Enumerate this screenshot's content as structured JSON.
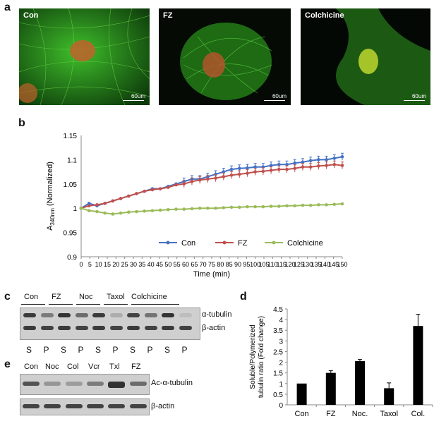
{
  "panels": {
    "a": "a",
    "b": "b",
    "c": "c",
    "d": "d",
    "e": "e"
  },
  "images": [
    {
      "label": "Con",
      "scale": "60um"
    },
    {
      "label": "FZ",
      "scale": "60um"
    },
    {
      "label": "Colchicine",
      "scale": "60um"
    }
  ],
  "chart_b": {
    "type": "line",
    "ylabel_main": "A",
    "ylabel_sub": "340nm",
    "ylabel_rest": " (Normalized)",
    "xlabel": "Time (min)",
    "xlim": [
      0,
      150
    ],
    "ylim": [
      0.9,
      1.15
    ],
    "yticks": [
      "0.9",
      "0.95",
      "1",
      "1.05",
      "1.1",
      "1.15"
    ],
    "xticks": [
      "0",
      "5",
      "10",
      "15",
      "20",
      "25",
      "30",
      "35",
      "40",
      "45",
      "50",
      "55",
      "60",
      "65",
      "70",
      "75",
      "80",
      "85",
      "90",
      "95",
      "100",
      "105",
      "110",
      "115",
      "120",
      "125",
      "130",
      "135",
      "140",
      "145",
      "150"
    ],
    "legend_position": "bottom-right",
    "series": [
      {
        "name": "Con",
        "color": "#4472c4",
        "values": [
          1.0,
          1.01,
          1.005,
          1.01,
          1.015,
          1.02,
          1.025,
          1.03,
          1.035,
          1.04,
          1.04,
          1.045,
          1.05,
          1.055,
          1.06,
          1.06,
          1.065,
          1.07,
          1.075,
          1.08,
          1.082,
          1.083,
          1.085,
          1.085,
          1.088,
          1.09,
          1.09,
          1.093,
          1.095,
          1.098,
          1.1,
          1.1,
          1.103,
          1.106
        ]
      },
      {
        "name": "FZ",
        "color": "#c0504d",
        "values": [
          1.0,
          1.005,
          1.007,
          1.01,
          1.015,
          1.02,
          1.025,
          1.03,
          1.035,
          1.038,
          1.04,
          1.043,
          1.048,
          1.05,
          1.055,
          1.058,
          1.06,
          1.062,
          1.065,
          1.068,
          1.07,
          1.072,
          1.075,
          1.076,
          1.078,
          1.08,
          1.08,
          1.082,
          1.085,
          1.085,
          1.087,
          1.088,
          1.09,
          1.088
        ]
      },
      {
        "name": "Colchicine",
        "color": "#9bbb59",
        "values": [
          1.0,
          0.995,
          0.993,
          0.99,
          0.988,
          0.99,
          0.992,
          0.993,
          0.994,
          0.995,
          0.996,
          0.997,
          0.998,
          0.998,
          0.999,
          1.0,
          1.0,
          1.0,
          1.001,
          1.002,
          1.002,
          1.003,
          1.003,
          1.003,
          1.004,
          1.004,
          1.005,
          1.005,
          1.006,
          1.006,
          1.007,
          1.007,
          1.008,
          1.009
        ]
      }
    ]
  },
  "blot_c": {
    "groups": [
      "Con",
      "FZ",
      "Noc",
      "Taxol",
      "Colchicine"
    ],
    "lanes": [
      "S",
      "P",
      "S",
      "P",
      "S",
      "P",
      "S",
      "P",
      "S",
      "P"
    ],
    "rows": [
      "α-tubulin",
      "β-actin"
    ]
  },
  "blot_e": {
    "lanes": [
      "Con",
      "Noc",
      "Col",
      "Vcr",
      "Txl",
      "FZ"
    ],
    "rows": [
      "Ac-α-tubulin",
      "β-actin"
    ]
  },
  "chart_data": {
    "type": "bar",
    "categories": [
      "Con",
      "FZ",
      "Noc.",
      "Taxol",
      "Col."
    ],
    "values": [
      1.0,
      1.5,
      2.05,
      0.78,
      3.7
    ],
    "errors": [
      0,
      0.1,
      0.08,
      0.25,
      0.55
    ],
    "ylabel_line1": "Soluble/Polymerized",
    "ylabel_line2": "tubulin ratio (Fold change)",
    "ylim": [
      0,
      4.5
    ],
    "yticks": [
      "0",
      "0.5",
      "1",
      "1.5",
      "2",
      "2.5",
      "3",
      "3.5",
      "4",
      "4.5"
    ]
  }
}
